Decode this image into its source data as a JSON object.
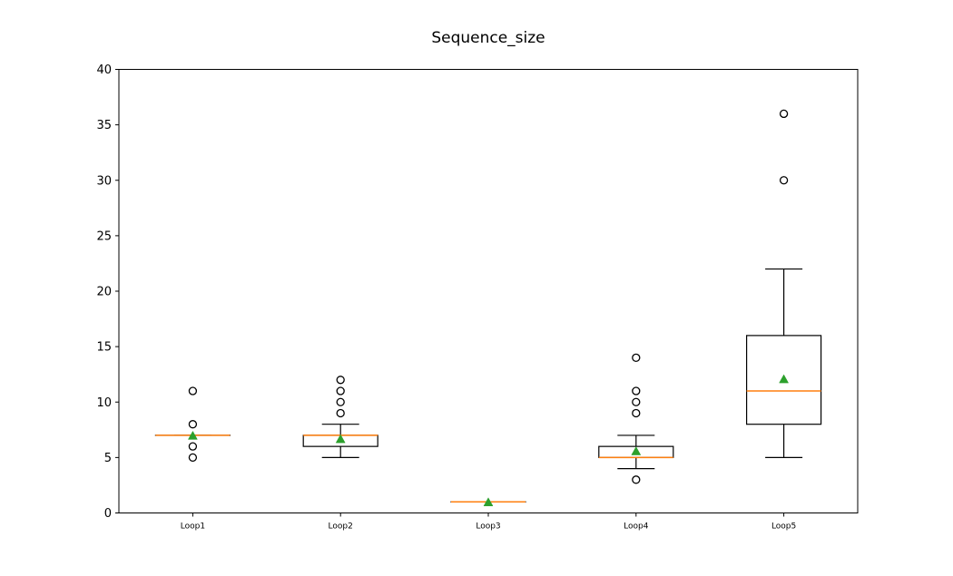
{
  "chart_data": {
    "type": "box",
    "title": "Sequence_size",
    "xlabel": "",
    "ylabel": "",
    "ylim": [
      0,
      40
    ],
    "yticks": [
      0,
      5,
      10,
      15,
      20,
      25,
      30,
      35,
      40
    ],
    "grid": false,
    "colors": {
      "box": "#000000",
      "median": "#ff7f0e",
      "mean": "#2ca02c",
      "flier": "#000000"
    },
    "series": [
      {
        "name": "Loop1",
        "whisker_low": 7,
        "q1": 7,
        "median": 7,
        "q3": 7,
        "whisker_high": 7,
        "mean": 7,
        "outliers": [
          5,
          6,
          8,
          11
        ]
      },
      {
        "name": "Loop2",
        "whisker_low": 5,
        "q1": 6,
        "median": 7,
        "q3": 7,
        "whisker_high": 8,
        "mean": 6.7,
        "outliers": [
          9,
          10,
          11,
          12
        ]
      },
      {
        "name": "Loop3",
        "whisker_low": 1,
        "q1": 1,
        "median": 1,
        "q3": 1,
        "whisker_high": 1,
        "mean": 1,
        "outliers": []
      },
      {
        "name": "Loop4",
        "whisker_low": 4,
        "q1": 5,
        "median": 5,
        "q3": 6,
        "whisker_high": 7,
        "mean": 5.6,
        "outliers": [
          3,
          9,
          10,
          11,
          14
        ]
      },
      {
        "name": "Loop5",
        "whisker_low": 5,
        "q1": 8,
        "median": 11,
        "q3": 16,
        "whisker_high": 22,
        "mean": 12.1,
        "outliers": [
          30,
          36
        ]
      }
    ]
  }
}
